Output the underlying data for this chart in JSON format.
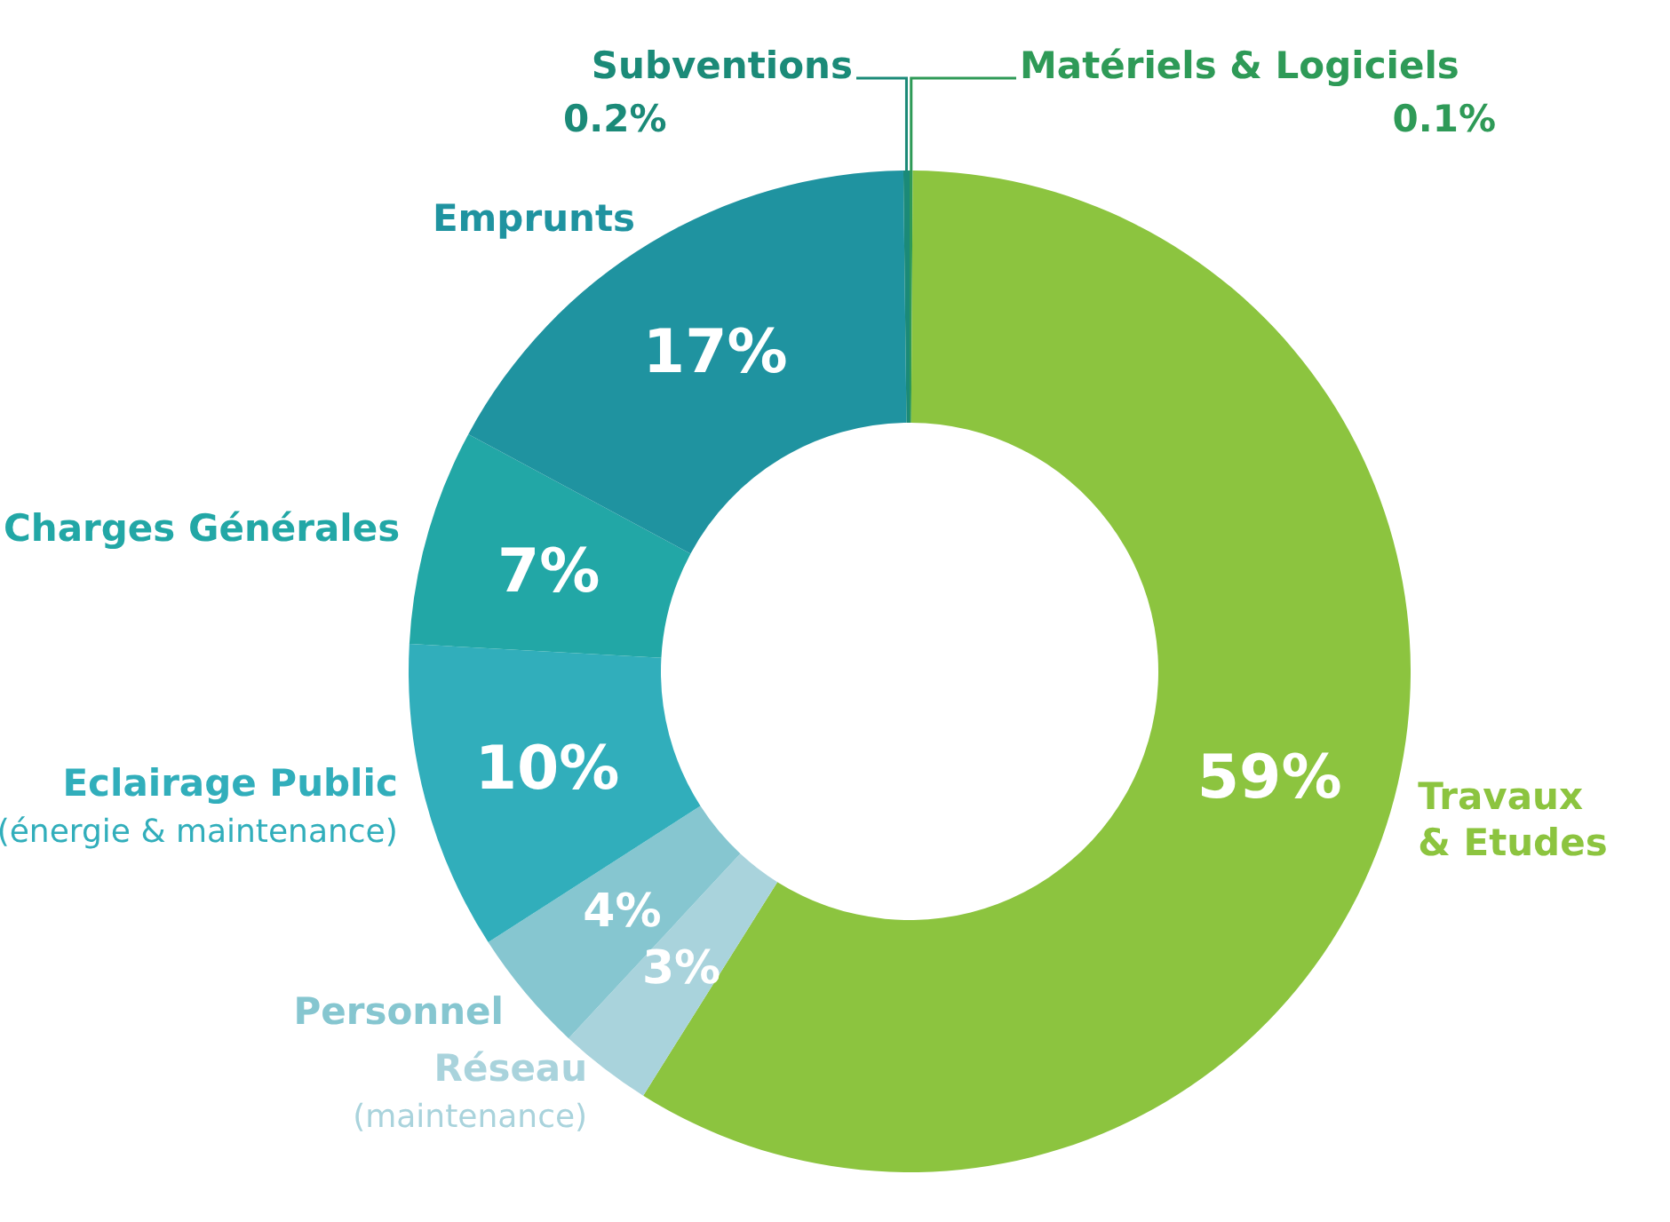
{
  "chart_data": {
    "type": "donut",
    "categories": [
      "Matériels & Logiciels",
      "Travaux & Etudes",
      "Réseau (maintenance)",
      "Personnel",
      "Eclairage Public (énergie & maintenance)",
      "Charges Générales",
      "Emprunts",
      "Subventions"
    ],
    "values": [
      0.1,
      59,
      3,
      4,
      10,
      7,
      17,
      0.2
    ],
    "value_labels": [
      "0.1%",
      "59%",
      "3%",
      "4%",
      "10%",
      "7%",
      "17%",
      "0.2%"
    ],
    "colors": [
      "#2e9a57",
      "#8cc43f",
      "#a9d3dc",
      "#86c6d0",
      "#31aebb",
      "#22a7a6",
      "#1f93a0",
      "#1b8a78"
    ]
  }
}
